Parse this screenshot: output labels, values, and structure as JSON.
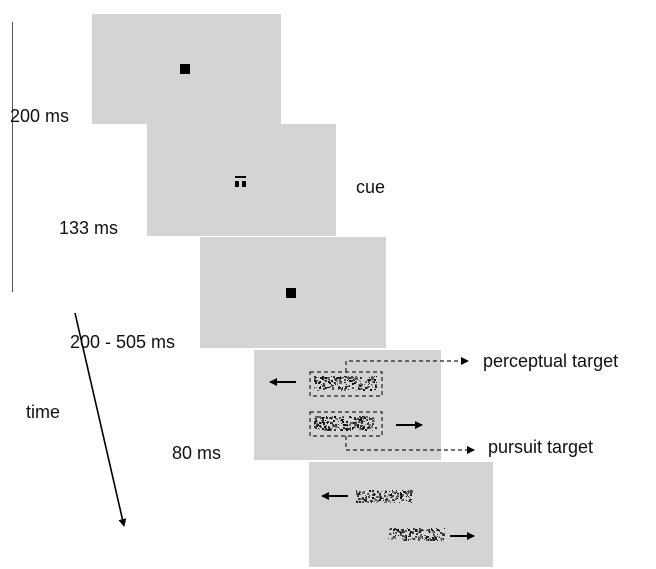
{
  "labels": {
    "frame1_duration": "200 ms",
    "frame2_duration": "133 ms",
    "frame3_duration": "200 - 505 ms",
    "frame4_duration": "80 ms",
    "cue": "cue",
    "perceptual_target": "perceptual target",
    "pursuit_target": "pursuit target",
    "time": "time"
  },
  "colors": {
    "frame_gray": "#d4d4d4",
    "ink": "#111111"
  }
}
